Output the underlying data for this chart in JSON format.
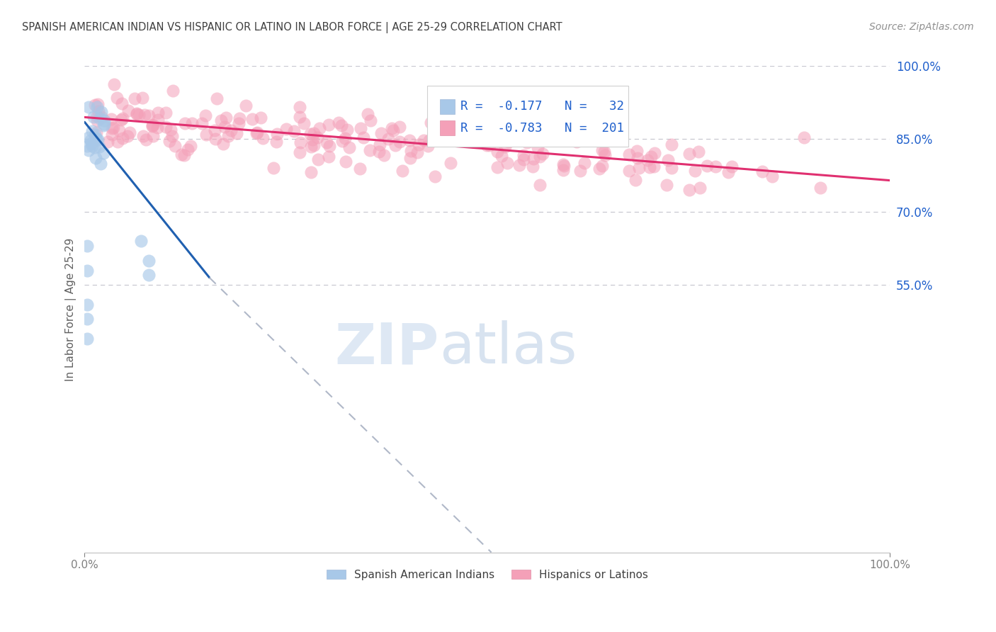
{
  "title": "SPANISH AMERICAN INDIAN VS HISPANIC OR LATINO IN LABOR FORCE | AGE 25-29 CORRELATION CHART",
  "source": "Source: ZipAtlas.com",
  "ylabel": "In Labor Force | Age 25-29",
  "watermark_zip": "ZIP",
  "watermark_atlas": "atlas",
  "xlim": [
    0.0,
    1.0
  ],
  "ylim": [
    0.0,
    1.0
  ],
  "x_tick_labels": [
    "0.0%",
    "100.0%"
  ],
  "right_y_ticks": [
    0.55,
    0.7,
    0.85,
    1.0
  ],
  "right_y_tick_labels": [
    "55.0%",
    "70.0%",
    "85.0%",
    "100.0%"
  ],
  "blue_color": "#a8c8e8",
  "pink_color": "#f4a0b8",
  "blue_line_color": "#2060b0",
  "pink_line_color": "#e03070",
  "dashed_line_color": "#b0b8c8",
  "title_color": "#404040",
  "source_color": "#909090",
  "legend_text_color": "#2060cc",
  "right_tick_color": "#2060cc",
  "background_color": "#ffffff",
  "grid_color": "#c8c8d0",
  "blue_trend_x": [
    0.0,
    0.155
  ],
  "blue_trend_y": [
    0.885,
    0.565
  ],
  "dashed_trend_x": [
    0.155,
    0.505
  ],
  "dashed_trend_y": [
    0.565,
    0.0
  ],
  "pink_trend_x": [
    0.0,
    1.0
  ],
  "pink_trend_y": [
    0.895,
    0.765
  ]
}
